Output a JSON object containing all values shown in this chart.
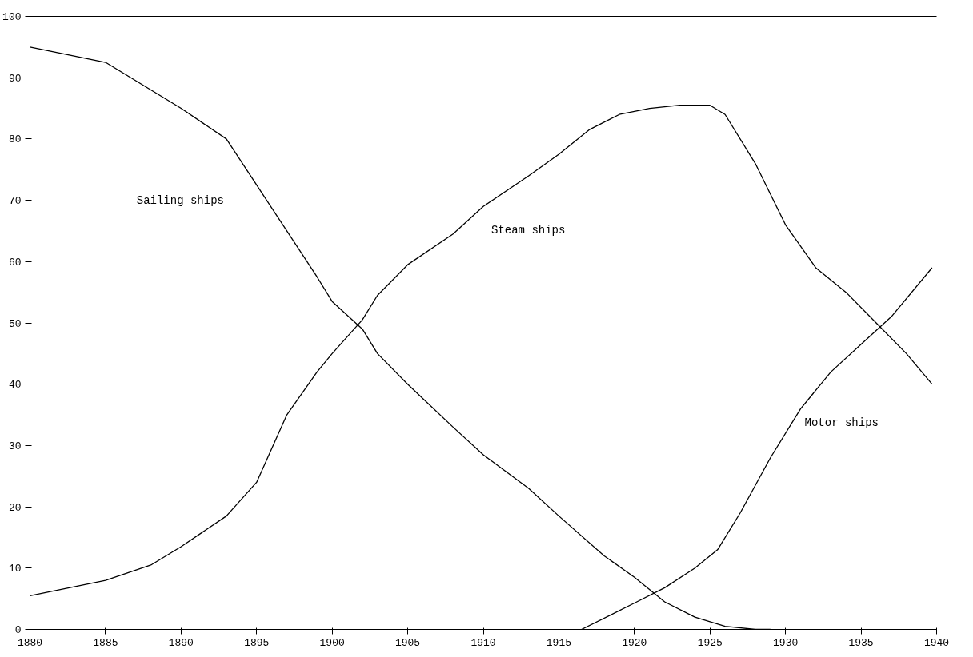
{
  "chart_data": {
    "type": "line",
    "series": [
      {
        "name": "Sailing ships",
        "color": "#000000",
        "x": [
          1880,
          1885,
          1890,
          1893,
          1895,
          1897,
          1899,
          1900,
          1902,
          1903,
          1905,
          1908,
          1910,
          1913,
          1915,
          1918,
          1920,
          1922,
          1924,
          1926,
          1928,
          1929
        ],
        "values": [
          95,
          92.5,
          85,
          80,
          72.5,
          65,
          57.5,
          53.5,
          49,
          45,
          40,
          33,
          28.5,
          23,
          18.5,
          12,
          8.5,
          4.5,
          2,
          0.5,
          0,
          0
        ]
      },
      {
        "name": "Steam ships",
        "color": "#000000",
        "x": [
          1880,
          1885,
          1888,
          1890,
          1893,
          1895,
          1897,
          1899,
          1900,
          1902,
          1903,
          1905,
          1908,
          1910,
          1913,
          1915,
          1917,
          1919,
          1921,
          1923,
          1925,
          1926,
          1928,
          1930,
          1932,
          1934,
          1936,
          1938,
          1939.7
        ],
        "values": [
          5.5,
          8,
          10.5,
          13.5,
          18.5,
          24,
          35,
          42,
          45,
          50.5,
          54.5,
          59.5,
          64.5,
          69,
          74,
          77.5,
          81.5,
          84,
          85,
          85.5,
          85.5,
          84,
          76,
          66,
          59,
          55,
          50,
          45,
          40
        ]
      },
      {
        "name": "Motor ships",
        "color": "#000000",
        "x": [
          1916.5,
          1920,
          1922,
          1924,
          1925.5,
          1927,
          1929,
          1931,
          1933,
          1935,
          1937,
          1939.7
        ],
        "values": [
          0,
          4.3,
          6.8,
          10,
          13,
          19,
          28,
          36,
          42,
          46.5,
          51,
          59
        ]
      }
    ],
    "xlim": [
      1880,
      1940
    ],
    "xticks": [
      1880,
      1885,
      1890,
      1895,
      1900,
      1905,
      1910,
      1915,
      1920,
      1925,
      1930,
      1935,
      1940
    ],
    "ylim": [
      0,
      100
    ],
    "yticks": [
      0,
      10,
      20,
      30,
      40,
      50,
      60,
      70,
      80,
      90,
      100
    ],
    "grid": false,
    "marker": "none",
    "line_style": "solid"
  }
}
